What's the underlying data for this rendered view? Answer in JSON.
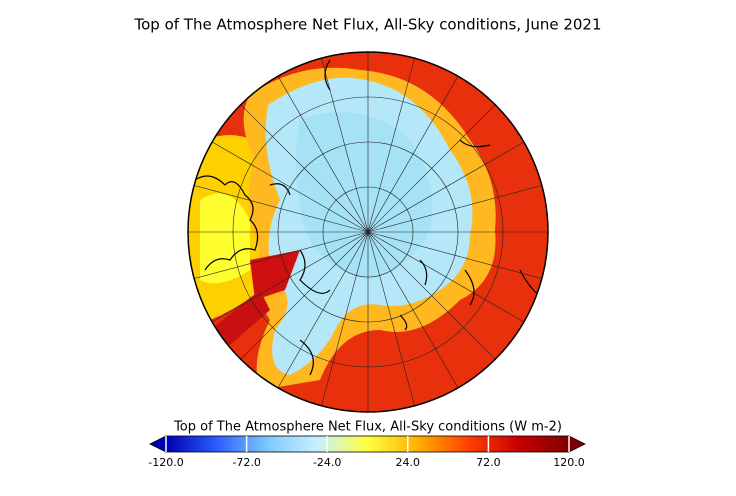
{
  "map": {
    "title": "Top of The Atmosphere Net Flux, All-Sky conditions, June 2021",
    "colorbar": {
      "label": "Top of The Atmosphere Net Flux, All-Sky conditions (W m-2)",
      "range": [
        -120,
        120
      ],
      "ticks": [
        {
          "value": -120,
          "label": "-120.0"
        },
        {
          "value": -72,
          "label": "-72.0"
        },
        {
          "value": -24,
          "label": "-24.0"
        },
        {
          "value": 24,
          "label": "24.0"
        },
        {
          "value": 72,
          "label": "72.0"
        },
        {
          "value": 120,
          "label": "120.0"
        }
      ],
      "colors": [
        "#0000b4",
        "#2a5cff",
        "#7cc8ff",
        "#c8f0ff",
        "#ffff40",
        "#ffb000",
        "#ff4000",
        "#c80000",
        "#800000"
      ]
    }
  }
}
